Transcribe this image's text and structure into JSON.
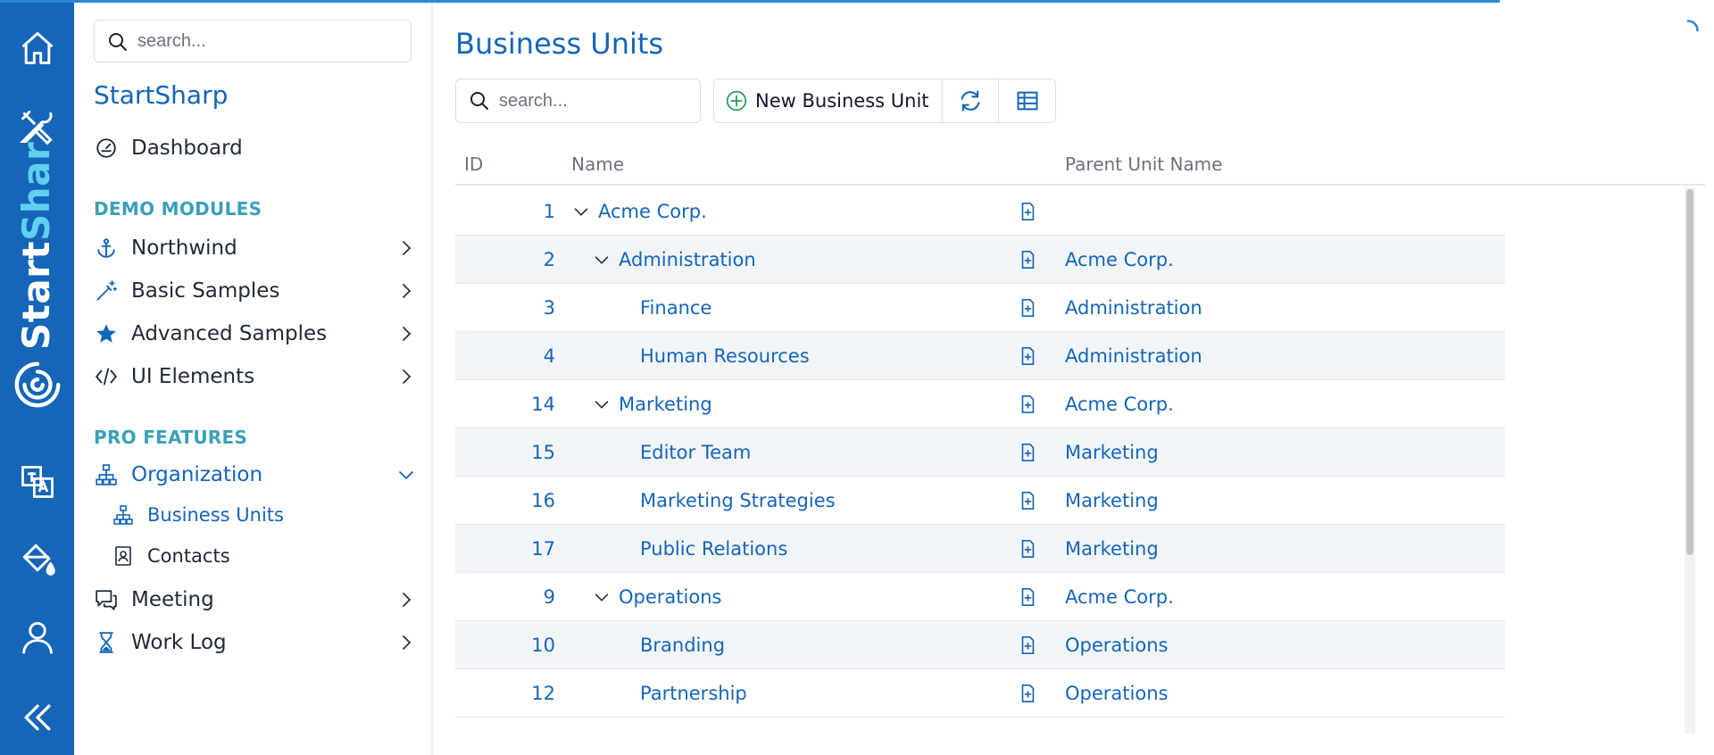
{
  "brand": {
    "rail_text_a": "Start",
    "rail_text_b": "Shar"
  },
  "sidebar": {
    "search_placeholder": "search...",
    "title": "StartSharp",
    "dashboard": "Dashboard",
    "section_demo": "DEMO MODULES",
    "northwind": "Northwind",
    "basic_samples": "Basic Samples",
    "advanced_samples": "Advanced Samples",
    "ui_elements": "UI Elements",
    "section_pro": "PRO FEATURES",
    "organization": "Organization",
    "business_units": "Business Units",
    "contacts": "Contacts",
    "meeting": "Meeting",
    "work_log": "Work Log"
  },
  "main": {
    "title": "Business Units",
    "search_placeholder": "search...",
    "new_button": "New Business Unit"
  },
  "grid": {
    "columns": {
      "id": "ID",
      "name": "Name",
      "parent": "Parent Unit Name"
    },
    "rows": [
      {
        "id": "1",
        "name": "Acme Corp.",
        "parent": "",
        "level": 0,
        "expandable": true
      },
      {
        "id": "2",
        "name": "Administration",
        "parent": "Acme Corp.",
        "level": 1,
        "expandable": true
      },
      {
        "id": "3",
        "name": "Finance",
        "parent": "Administration",
        "level": 2,
        "expandable": false
      },
      {
        "id": "4",
        "name": "Human Resources",
        "parent": "Administration",
        "level": 2,
        "expandable": false
      },
      {
        "id": "14",
        "name": "Marketing",
        "parent": "Acme Corp.",
        "level": 1,
        "expandable": true
      },
      {
        "id": "15",
        "name": "Editor Team",
        "parent": "Marketing",
        "level": 2,
        "expandable": false
      },
      {
        "id": "16",
        "name": "Marketing Strategies",
        "parent": "Marketing",
        "level": 2,
        "expandable": false
      },
      {
        "id": "17",
        "name": "Public Relations",
        "parent": "Marketing",
        "level": 2,
        "expandable": false
      },
      {
        "id": "9",
        "name": "Operations",
        "parent": "Acme Corp.",
        "level": 1,
        "expandable": true
      },
      {
        "id": "10",
        "name": "Branding",
        "parent": "Operations",
        "level": 2,
        "expandable": false
      },
      {
        "id": "12",
        "name": "Partnership",
        "parent": "Operations",
        "level": 2,
        "expandable": false
      }
    ]
  },
  "icons": {
    "rail": [
      "home-icon",
      "tools-icon",
      "translate-icon",
      "paint-bucket-icon",
      "user-icon",
      "collapse-icon"
    ],
    "accent_color": "#1565b8",
    "rail_color": "#1565b8"
  }
}
